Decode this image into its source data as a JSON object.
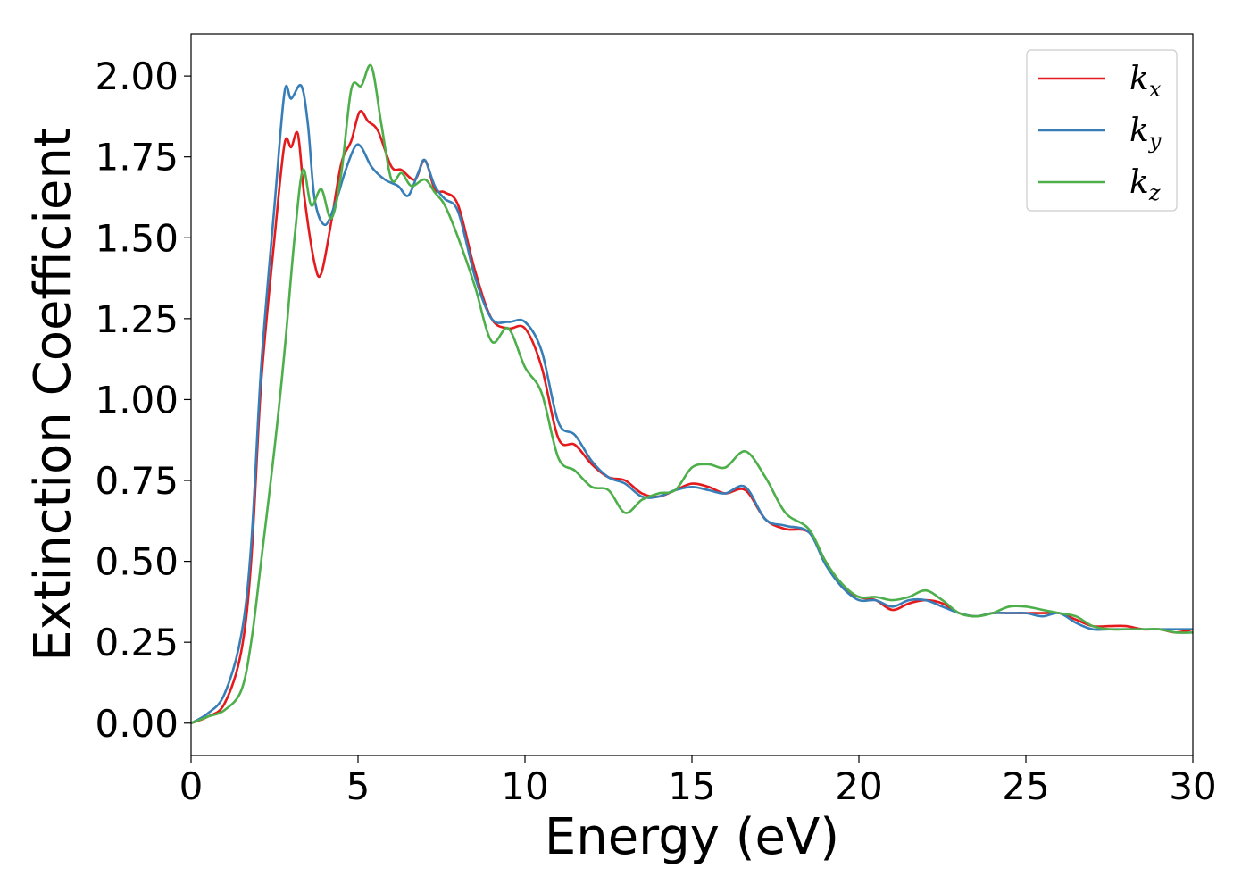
{
  "chart_data": {
    "type": "line",
    "title": "",
    "xlabel": "Energy (eV)",
    "ylabel": "Extinction Coefficient",
    "xlim": [
      0,
      30
    ],
    "ylim": [
      -0.1,
      2.13
    ],
    "xticks": [
      0,
      5,
      10,
      15,
      20,
      25,
      30
    ],
    "xtick_labels": [
      "0",
      "5",
      "10",
      "15",
      "20",
      "25",
      "30"
    ],
    "yticks": [
      0,
      0.25,
      0.5,
      0.75,
      1.0,
      1.25,
      1.5,
      1.75,
      2.0
    ],
    "ytick_labels": [
      "0.00",
      "0.25",
      "0.50",
      "0.75",
      "1.00",
      "1.25",
      "1.50",
      "1.75",
      "2.00"
    ],
    "grid": false,
    "legend_position": "top-right",
    "series": [
      {
        "name": "k",
        "sub": "x",
        "color": "#e41a1c",
        "x": [
          0,
          0.5,
          1,
          1.5,
          1.8,
          2.1,
          2.5,
          2.8,
          3.0,
          3.2,
          3.4,
          3.7,
          3.9,
          4.2,
          4.5,
          4.8,
          5.05,
          5.3,
          5.6,
          6.0,
          6.3,
          6.7,
          7.0,
          7.3,
          7.6,
          8.0,
          8.5,
          9.0,
          9.5,
          10.0,
          10.5,
          11.0,
          11.5,
          12.0,
          12.5,
          13.0,
          13.5,
          14.0,
          14.5,
          15.0,
          15.5,
          16.0,
          16.6,
          17.2,
          17.8,
          18.5,
          19.0,
          19.5,
          20.0,
          20.5,
          21.0,
          21.5,
          22.0,
          22.5,
          23.0,
          23.5,
          24.0,
          24.5,
          25.0,
          25.5,
          26.0,
          26.5,
          27.0,
          27.5,
          28.0,
          28.5,
          29.0,
          29.5,
          30.0
        ],
        "y": [
          0,
          0.02,
          0.06,
          0.22,
          0.5,
          1.05,
          1.5,
          1.79,
          1.78,
          1.82,
          1.62,
          1.42,
          1.39,
          1.55,
          1.73,
          1.8,
          1.89,
          1.86,
          1.83,
          1.72,
          1.71,
          1.68,
          1.74,
          1.65,
          1.64,
          1.6,
          1.4,
          1.25,
          1.22,
          1.22,
          1.1,
          0.88,
          0.86,
          0.8,
          0.76,
          0.75,
          0.71,
          0.7,
          0.72,
          0.74,
          0.73,
          0.71,
          0.72,
          0.63,
          0.6,
          0.59,
          0.5,
          0.42,
          0.39,
          0.38,
          0.35,
          0.37,
          0.38,
          0.37,
          0.34,
          0.33,
          0.34,
          0.34,
          0.34,
          0.34,
          0.34,
          0.32,
          0.3,
          0.3,
          0.3,
          0.29,
          0.29,
          0.28,
          0.29
        ]
      },
      {
        "name": "k",
        "sub": "y",
        "color": "#377eb8",
        "x": [
          0,
          0.5,
          1,
          1.5,
          1.8,
          2.1,
          2.5,
          2.8,
          3.0,
          3.3,
          3.5,
          3.7,
          4.0,
          4.3,
          4.6,
          4.9,
          5.1,
          5.4,
          5.8,
          6.2,
          6.5,
          6.8,
          7.0,
          7.3,
          7.6,
          8.0,
          8.5,
          9.0,
          9.5,
          10.0,
          10.5,
          11.0,
          11.5,
          12.0,
          12.5,
          13.0,
          13.5,
          14.0,
          14.5,
          15.0,
          15.5,
          16.0,
          16.6,
          17.2,
          17.8,
          18.5,
          19.0,
          19.5,
          20.0,
          20.5,
          21.0,
          21.5,
          22.0,
          22.5,
          23.0,
          23.5,
          24.0,
          24.5,
          25.0,
          25.5,
          26.0,
          26.5,
          27.0,
          27.5,
          28.0,
          28.5,
          29.0,
          29.5,
          30.0
        ],
        "y": [
          0,
          0.03,
          0.09,
          0.27,
          0.55,
          1.1,
          1.6,
          1.95,
          1.93,
          1.97,
          1.85,
          1.62,
          1.54,
          1.6,
          1.7,
          1.78,
          1.78,
          1.72,
          1.68,
          1.66,
          1.63,
          1.7,
          1.74,
          1.66,
          1.62,
          1.58,
          1.38,
          1.25,
          1.24,
          1.24,
          1.15,
          0.93,
          0.89,
          0.81,
          0.76,
          0.74,
          0.7,
          0.7,
          0.72,
          0.73,
          0.72,
          0.71,
          0.73,
          0.63,
          0.61,
          0.59,
          0.49,
          0.42,
          0.38,
          0.38,
          0.36,
          0.38,
          0.38,
          0.36,
          0.34,
          0.33,
          0.34,
          0.34,
          0.34,
          0.33,
          0.34,
          0.31,
          0.29,
          0.29,
          0.29,
          0.29,
          0.29,
          0.29,
          0.29
        ]
      },
      {
        "name": "k",
        "sub": "z",
        "color": "#4daf4a",
        "x": [
          0,
          0.5,
          1,
          1.5,
          1.8,
          2.1,
          2.5,
          2.8,
          3.1,
          3.35,
          3.6,
          3.9,
          4.2,
          4.5,
          4.8,
          5.1,
          5.4,
          5.7,
          6.0,
          6.3,
          6.6,
          7.0,
          7.3,
          7.6,
          8.0,
          8.5,
          9.0,
          9.5,
          10.0,
          10.5,
          11.0,
          11.5,
          12.0,
          12.5,
          13.0,
          13.5,
          14.0,
          14.5,
          15.0,
          15.5,
          16.0,
          16.6,
          17.2,
          17.8,
          18.5,
          19.0,
          19.5,
          20.0,
          20.5,
          21.0,
          21.5,
          22.0,
          22.5,
          23.0,
          23.5,
          24.0,
          24.5,
          25.0,
          25.5,
          26.0,
          26.5,
          27.0,
          27.5,
          28.0,
          28.5,
          29.0,
          29.5,
          30.0
        ],
        "y": [
          0,
          0.02,
          0.04,
          0.1,
          0.25,
          0.5,
          0.85,
          1.15,
          1.5,
          1.71,
          1.6,
          1.65,
          1.56,
          1.7,
          1.96,
          1.97,
          2.03,
          1.85,
          1.68,
          1.7,
          1.66,
          1.68,
          1.64,
          1.6,
          1.5,
          1.35,
          1.18,
          1.22,
          1.1,
          1.02,
          0.82,
          0.78,
          0.73,
          0.72,
          0.65,
          0.69,
          0.71,
          0.72,
          0.79,
          0.8,
          0.79,
          0.84,
          0.76,
          0.65,
          0.6,
          0.5,
          0.43,
          0.39,
          0.39,
          0.38,
          0.39,
          0.41,
          0.38,
          0.34,
          0.33,
          0.34,
          0.36,
          0.36,
          0.35,
          0.34,
          0.33,
          0.3,
          0.29,
          0.29,
          0.29,
          0.29,
          0.28,
          0.28
        ]
      }
    ]
  }
}
